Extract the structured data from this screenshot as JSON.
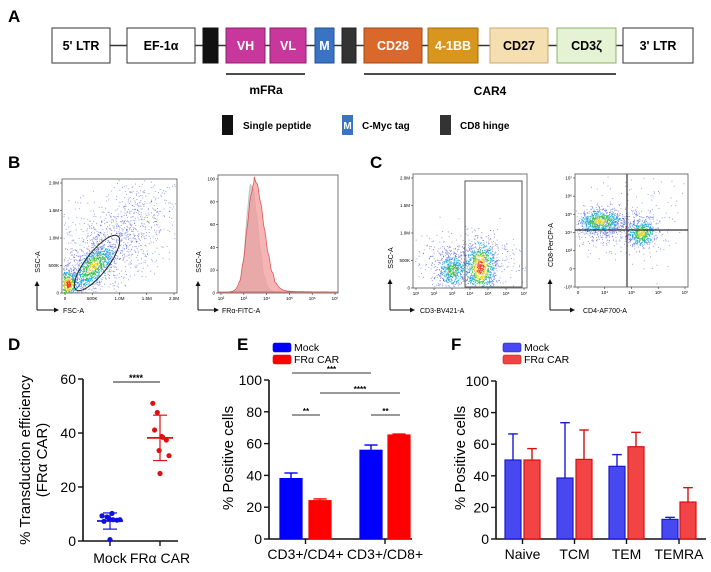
{
  "panel_labels": {
    "a": "A",
    "b": "B",
    "c": "C",
    "d": "D",
    "e": "E",
    "f": "F"
  },
  "construct": {
    "elements": [
      {
        "label": "5' LTR",
        "fill": "#ffffff",
        "text": "#000000",
        "stroke": "#333333"
      },
      {
        "label": "EF-1α",
        "fill": "#ffffff",
        "text": "#000000",
        "stroke": "#333333"
      },
      {
        "label": "",
        "fill": "#111111",
        "text": "#ffffff",
        "stroke": "#111111"
      },
      {
        "label": "VH",
        "fill": "#c8379b",
        "text": "#ffffff",
        "stroke": "#8a2068"
      },
      {
        "label": "VL",
        "fill": "#c8379b",
        "text": "#ffffff",
        "stroke": "#8a2068"
      },
      {
        "label": "M",
        "fill": "#3a73c4",
        "text": "#ffffff",
        "stroke": "#22508f"
      },
      {
        "label": "",
        "fill": "#333333",
        "text": "#ffffff",
        "stroke": "#222222"
      },
      {
        "label": "CD28",
        "fill": "#d9682a",
        "text": "#ffffff",
        "stroke": "#a04a18"
      },
      {
        "label": "4-1BB",
        "fill": "#d8961f",
        "text": "#ffffff",
        "stroke": "#a06e10"
      },
      {
        "label": "CD27",
        "fill": "#f5dfb0",
        "text": "#000000",
        "stroke": "#c8a870"
      },
      {
        "label": "CD3ζ",
        "fill": "#e6f2d4",
        "text": "#000000",
        "stroke": "#8ab36a"
      },
      {
        "label": "3' LTR",
        "fill": "#ffffff",
        "text": "#000000",
        "stroke": "#333333"
      }
    ],
    "brackets": [
      {
        "label": "mFRa"
      },
      {
        "label": "CAR4"
      }
    ],
    "legend": [
      {
        "icon_label": "",
        "label": "Single peptide",
        "fill": "#111111"
      },
      {
        "icon_label": "M",
        "label": "C-Myc tag",
        "fill": "#3a73c4"
      },
      {
        "icon_label": "",
        "label": "CD8 hinge",
        "fill": "#333333"
      }
    ]
  },
  "flow": {
    "b_scatter": {
      "ylabel": "SSC-A",
      "xlabel": "FSC-A",
      "yticks": [
        "0",
        "500K",
        "1.0M",
        "1.5M",
        "2.0M"
      ],
      "xticks": [
        "0",
        "500K",
        "1.0M",
        "1.5M",
        "2.0M"
      ]
    },
    "b_histogram": {
      "ylabel": "SSC-A",
      "xlabel": "FRα-FITC-A",
      "yticks": [
        "0",
        "20",
        "40",
        "60",
        "80",
        "100"
      ],
      "xticks": [
        "10²",
        "10³",
        "10⁴",
        "10⁵",
        "10⁶",
        "10⁷"
      ],
      "colors": {
        "control": "#cfcfcf",
        "car": "#f29c9c",
        "car_line": "#e05555"
      }
    },
    "c_scatter": {
      "ylabel": "SSC-A",
      "xlabel": "CD3-BV421-A",
      "yticks": [
        "0",
        "500K",
        "1.0M",
        "1.5M",
        "2.0M"
      ],
      "xticks": [
        "10¹",
        "10²",
        "10³",
        "10⁴",
        "10⁵",
        "10⁶",
        "10⁷"
      ]
    },
    "c_quadrant": {
      "ylabel": "CD8-PerCP-A",
      "xlabel": "CD4-AF700-A",
      "yticks": [
        "-10³",
        "0",
        "10³",
        "10⁴",
        "10⁵",
        "10⁶",
        "10⁷"
      ],
      "xticks": [
        "0",
        "10⁴",
        "10⁵",
        "10⁶",
        "10⁷"
      ]
    }
  },
  "chart_data": [
    {
      "panel": "D",
      "type": "scatter",
      "categories": [
        "Mock",
        "FRα CAR"
      ],
      "groups": [
        {
          "category": "Mock",
          "points": [
            9.3,
            8.9,
            7.3,
            7.9,
            7.7,
            10.2,
            8.3,
            7.9,
            0.5
          ],
          "mean": 7.4,
          "sd": 3.0,
          "color": "#1010e0"
        },
        {
          "category": "FRα CAR",
          "points": [
            51,
            47.6,
            41.1,
            38.4,
            37.4,
            38.7,
            33.5,
            31.6,
            25
          ],
          "mean": 38.2,
          "sd": 8.4,
          "color": "#e01010"
        }
      ],
      "ylabel_lines": [
        "% Transduction efficiency",
        "(FRα CAR)"
      ],
      "ylim": [
        0,
        60
      ],
      "yticks": [
        0,
        20,
        40,
        60
      ],
      "annotations": [
        {
          "text": "****",
          "between": [
            "Mock",
            "FRα CAR"
          ]
        }
      ]
    },
    {
      "panel": "E",
      "type": "bar",
      "categories": [
        "CD3+/CD4+",
        "CD3+/CD8+"
      ],
      "series": [
        {
          "name": "Mock",
          "values": [
            38,
            55.8
          ],
          "errors": [
            3.5,
            3.3
          ],
          "color": "#0000ff",
          "stroke": "#0000ff"
        },
        {
          "name": "FRα CAR",
          "values": [
            24.1,
            65.4
          ],
          "errors": [
            1.1,
            0.6
          ],
          "color": "#ff0000",
          "stroke": "#ff0000"
        }
      ],
      "ylabel": "% Positive cells",
      "ylim": [
        0,
        100
      ],
      "yticks": [
        0,
        20,
        40,
        60,
        80,
        100
      ],
      "legend": "top-left",
      "annotations": [
        {
          "text": "***",
          "from": "Mock CD3+/CD4+",
          "to": "Mock CD3+/CD8+"
        },
        {
          "text": "****",
          "from": "FRα CAR CD3+/CD4+",
          "to": "FRα CAR CD3+/CD8+"
        },
        {
          "text": "**",
          "from": "Mock CD3+/CD4+",
          "to": "FRα CAR CD3+/CD4+"
        },
        {
          "text": "**",
          "from": "Mock CD3+/CD8+",
          "to": "FRα CAR CD3+/CD8+"
        }
      ]
    },
    {
      "panel": "F",
      "type": "bar",
      "categories": [
        "Naive",
        "TCM",
        "TEM",
        "TEMRA"
      ],
      "series": [
        {
          "name": "Mock",
          "values": [
            50,
            38.6,
            46,
            12.4
          ],
          "errors": [
            16.5,
            35,
            7.4,
            1.3
          ],
          "color": "#4848f0",
          "stroke": "#1a1ad0"
        },
        {
          "name": "FRα CAR",
          "values": [
            50,
            50.4,
            58.4,
            23.4
          ],
          "errors": [
            7.2,
            18.6,
            9.1,
            9.1
          ],
          "color": "#f24444",
          "stroke": "#d41010"
        }
      ],
      "ylabel": "% Positive cells",
      "ylim": [
        0,
        100
      ],
      "yticks": [
        0,
        20,
        40,
        60,
        80,
        100
      ],
      "legend": "top-left"
    }
  ]
}
